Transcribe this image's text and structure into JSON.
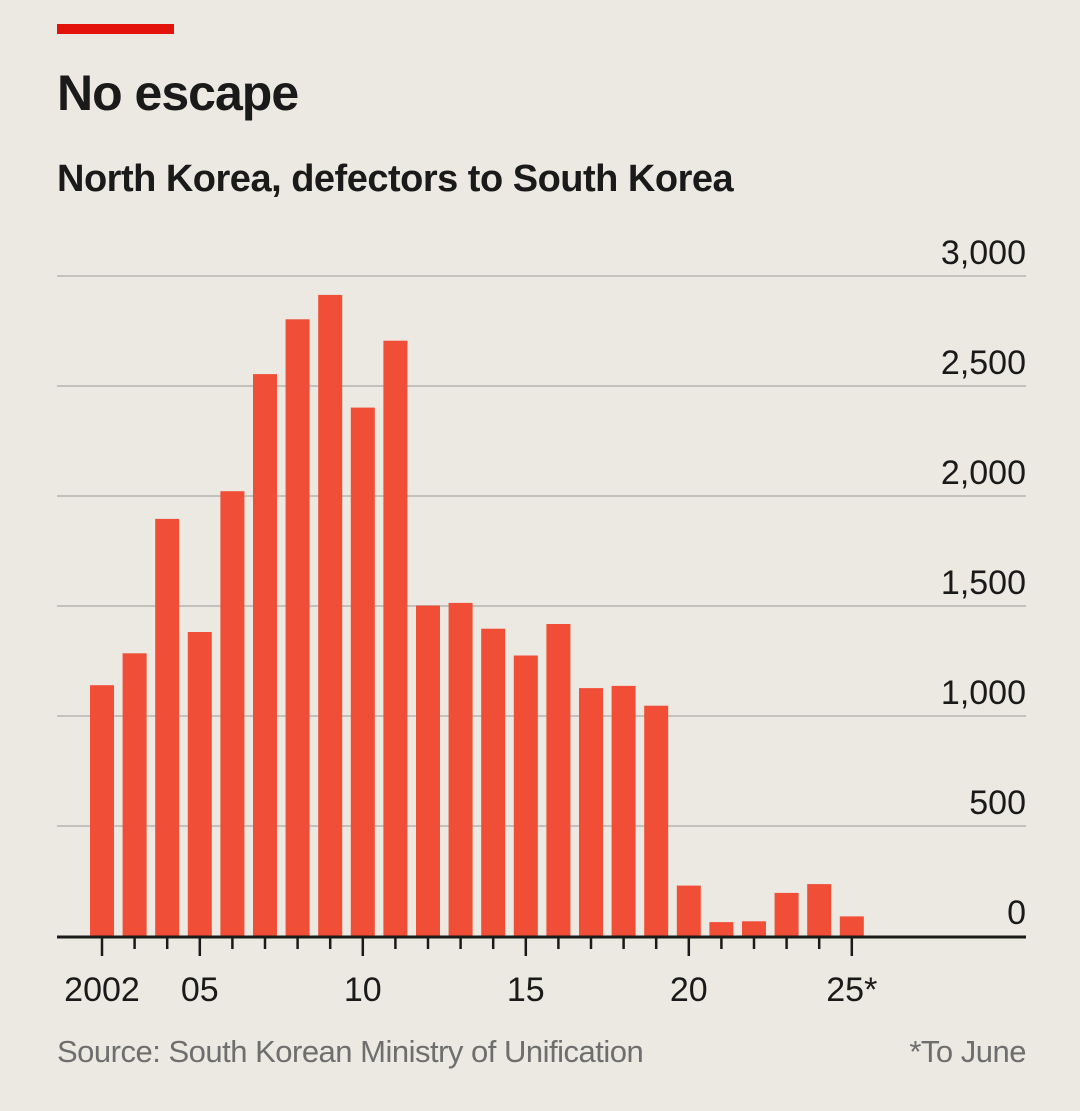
{
  "header": {
    "title": "No escape",
    "subtitle": "North Korea, defectors to South Korea",
    "accent_color": "#e3120b"
  },
  "footer": {
    "source": "Source: South Korean Ministry of Unification",
    "footnote": "*To June"
  },
  "chart_data": {
    "type": "bar",
    "title": "No escape",
    "subtitle": "North Korea, defectors to South Korea",
    "xlabel": "",
    "ylabel": "",
    "bar_color": "#f04e37",
    "categories": [
      "2002",
      "2003",
      "2004",
      "2005",
      "2006",
      "2007",
      "2008",
      "2009",
      "2010",
      "2011",
      "2012",
      "2013",
      "2014",
      "2015",
      "2016",
      "2017",
      "2018",
      "2019",
      "2020",
      "2021",
      "2022",
      "2023",
      "2024",
      "2025"
    ],
    "values": [
      1140,
      1285,
      1896,
      1382,
      2022,
      2554,
      2803,
      2914,
      2402,
      2706,
      1502,
      1514,
      1397,
      1275,
      1418,
      1127,
      1137,
      1047,
      229,
      63,
      67,
      196,
      236,
      89
    ],
    "ylim": [
      0,
      3000
    ],
    "y_ticks": [
      0,
      500,
      1000,
      1500,
      2000,
      2500,
      3000
    ],
    "y_tick_labels": [
      "0",
      "500",
      "1,000",
      "1,500",
      "2,000",
      "2,500",
      "3,000"
    ],
    "x_tick_labels": [
      {
        "year": "2002",
        "label": "2002"
      },
      {
        "year": "2005",
        "label": "05"
      },
      {
        "year": "2010",
        "label": "10"
      },
      {
        "year": "2015",
        "label": "15"
      },
      {
        "year": "2020",
        "label": "20"
      },
      {
        "year": "2025",
        "label": "25*"
      }
    ],
    "grid": true,
    "y_axis_side": "right"
  }
}
